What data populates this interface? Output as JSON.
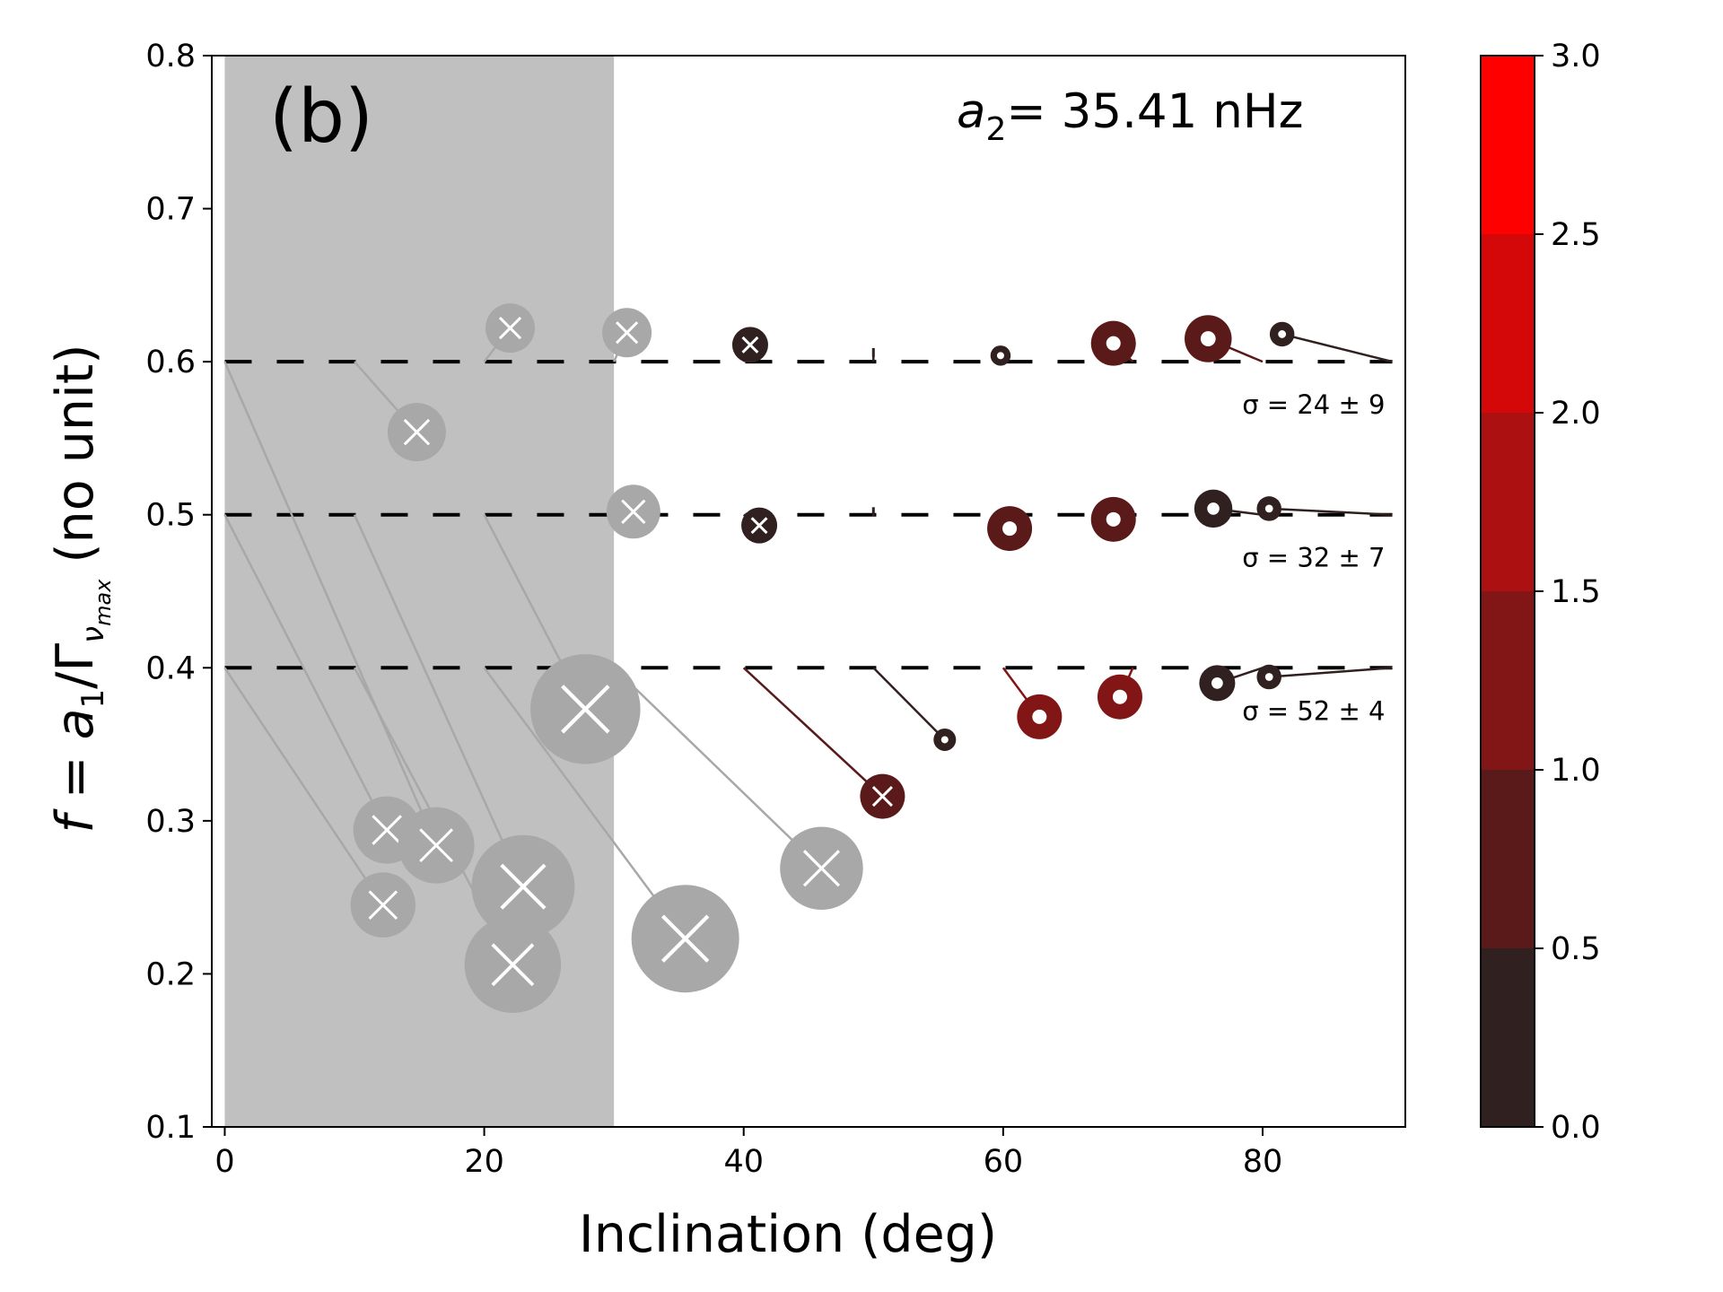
{
  "chart_data": {
    "type": "scatter",
    "panel_label": "(b)",
    "parameter_label": {
      "symbol": "a",
      "subscript": "2",
      "value_text": "= 35.41 nHz"
    },
    "xlabel": "Inclination (deg)",
    "ylabel": {
      "prefix": "f",
      "eq": " = a",
      "sub1": "1",
      "mid": "/Γ",
      "sub2": "ν",
      "sub3": "max",
      "suffix": "(no unit)"
    },
    "xlim": [
      -1,
      91
    ],
    "ylim": [
      0.1,
      0.8
    ],
    "x_ticks": [
      0,
      20,
      40,
      60,
      80
    ],
    "x_tick_labels": [
      "0",
      "20",
      "40",
      "60",
      "80"
    ],
    "y_ticks": [
      0.1,
      0.2,
      0.3,
      0.4,
      0.5,
      0.6,
      0.7,
      0.8
    ],
    "y_tick_labels": [
      "0.1",
      "0.2",
      "0.3",
      "0.4",
      "0.5",
      "0.6",
      "0.7",
      "0.8"
    ],
    "shaded_region": {
      "x": [
        0,
        30
      ],
      "color": "#c0c0c0"
    },
    "reference_levels": [
      {
        "y": 0.6,
        "sigma_label": "σ = 24 ± 9"
      },
      {
        "y": 0.5,
        "sigma_label": "σ = 32 ± 7"
      },
      {
        "y": 0.4,
        "sigma_label": "σ = 52 ± 4"
      }
    ],
    "colorbar": {
      "range": [
        0,
        3
      ],
      "ticks": [
        0.0,
        0.5,
        1.0,
        1.5,
        2.0,
        2.5,
        3.0
      ],
      "tick_labels": [
        "0.0",
        "0.5",
        "1.0",
        "1.5",
        "2.0",
        "2.5",
        "3.0"
      ],
      "bins": [
        {
          "from": 0.0,
          "to": 0.5,
          "color": "#302020"
        },
        {
          "from": 0.5,
          "to": 1.0,
          "color": "#5a1a1a"
        },
        {
          "from": 1.0,
          "to": 1.5,
          "color": "#821515"
        },
        {
          "from": 1.5,
          "to": 2.0,
          "color": "#ac1010"
        },
        {
          "from": 2.0,
          "to": 2.5,
          "color": "#d40808"
        },
        {
          "from": 2.5,
          "to": 3.0,
          "color": "#ff0000"
        }
      ]
    },
    "marker_colors": {
      "excluded": "#a8a8a8",
      "cross": "#ffffff"
    },
    "points": [
      {
        "x_true": 20,
        "y_true": 0.6,
        "x": 22.0,
        "y": 0.622,
        "size": 2.2,
        "color": "#a8a8a8",
        "cross": true,
        "hole": false
      },
      {
        "x_true": 30,
        "y_true": 0.6,
        "x": 31.0,
        "y": 0.619,
        "size": 2.2,
        "color": "#a8a8a8",
        "cross": true,
        "hole": false
      },
      {
        "x_true": 10,
        "y_true": 0.6,
        "x": 14.8,
        "y": 0.554,
        "size": 2.6,
        "color": "#a8a8a8",
        "cross": true,
        "hole": false
      },
      {
        "x_true": 40,
        "y_true": 0.6,
        "x": 40.5,
        "y": 0.611,
        "size": 1.6,
        "color": "#302020",
        "cross": true,
        "hole": false
      },
      {
        "x_true": 60,
        "y_true": 0.6,
        "x": 59.8,
        "y": 0.604,
        "size": 0.9,
        "color": "#302020",
        "cross": false,
        "hole": true
      },
      {
        "x_true": 70,
        "y_true": 0.6,
        "x": 68.5,
        "y": 0.612,
        "size": 2.0,
        "color": "#5a1a1a",
        "cross": false,
        "hole": true
      },
      {
        "x_true": 80,
        "y_true": 0.6,
        "x": 75.8,
        "y": 0.615,
        "size": 2.1,
        "color": "#5a1a1a",
        "cross": false,
        "hole": true
      },
      {
        "x_true": 90,
        "y_true": 0.6,
        "x": 81.5,
        "y": 0.618,
        "size": 1.1,
        "color": "#302020",
        "cross": false,
        "hole": true
      },
      {
        "x_true": 30,
        "y_true": 0.5,
        "x": 31.5,
        "y": 0.502,
        "size": 2.4,
        "color": "#a8a8a8",
        "cross": true,
        "hole": false
      },
      {
        "x_true": 40,
        "y_true": 0.5,
        "x": 41.2,
        "y": 0.493,
        "size": 1.6,
        "color": "#302020",
        "cross": true,
        "hole": false
      },
      {
        "x_true": 60,
        "y_true": 0.5,
        "x": 60.5,
        "y": 0.491,
        "size": 2.0,
        "color": "#5a1a1a",
        "cross": false,
        "hole": true
      },
      {
        "x_true": 70,
        "y_true": 0.5,
        "x": 68.5,
        "y": 0.497,
        "size": 2.0,
        "color": "#5a1a1a",
        "cross": false,
        "hole": true
      },
      {
        "x_true": 80,
        "y_true": 0.5,
        "x": 76.2,
        "y": 0.504,
        "size": 1.7,
        "color": "#302020",
        "cross": false,
        "hole": true
      },
      {
        "x_true": 90,
        "y_true": 0.5,
        "x": 80.5,
        "y": 0.504,
        "size": 1.1,
        "color": "#302020",
        "cross": false,
        "hole": true
      },
      {
        "x_true": 0,
        "y_true": 0.4,
        "x": 12.2,
        "y": 0.245,
        "size": 2.9,
        "color": "#a8a8a8",
        "cross": true,
        "hole": false
      },
      {
        "x_true": 0,
        "y_true": 0.5,
        "x": 12.5,
        "y": 0.294,
        "size": 3.0,
        "color": "#a8a8a8",
        "cross": true,
        "hole": false
      },
      {
        "x_true": 0,
        "y_true": 0.6,
        "x": 16.3,
        "y": 0.284,
        "size": 3.4,
        "color": "#a8a8a8",
        "cross": true,
        "hole": false
      },
      {
        "x_true": 10,
        "y_true": 0.4,
        "x": 22.2,
        "y": 0.206,
        "size": 4.3,
        "color": "#a8a8a8",
        "cross": true,
        "hole": false
      },
      {
        "x_true": 10,
        "y_true": 0.5,
        "x": 23.0,
        "y": 0.257,
        "size": 4.6,
        "color": "#a8a8a8",
        "cross": true,
        "hole": false
      },
      {
        "x_true": 20,
        "y_true": 0.4,
        "x": 35.5,
        "y": 0.223,
        "size": 4.8,
        "color": "#a8a8a8",
        "cross": true,
        "hole": false
      },
      {
        "x_true": 20,
        "y_true": 0.5,
        "x": 27.8,
        "y": 0.373,
        "size": 4.9,
        "color": "#a8a8a8",
        "cross": true,
        "hole": false
      },
      {
        "x_true": 30,
        "y_true": 0.4,
        "x": 46.0,
        "y": 0.269,
        "size": 3.7,
        "color": "#a8a8a8",
        "cross": true,
        "hole": false
      },
      {
        "x_true": 40,
        "y_true": 0.4,
        "x": 50.7,
        "y": 0.316,
        "size": 2.0,
        "color": "#5a1a1a",
        "cross": true,
        "hole": false
      },
      {
        "x_true": 50,
        "y_true": 0.4,
        "x": 55.5,
        "y": 0.353,
        "size": 1.0,
        "color": "#302020",
        "cross": false,
        "hole": true
      },
      {
        "x_true": 60,
        "y_true": 0.4,
        "x": 62.8,
        "y": 0.368,
        "size": 2.0,
        "color": "#821515",
        "cross": false,
        "hole": true
      },
      {
        "x_true": 70,
        "y_true": 0.4,
        "x": 69.0,
        "y": 0.381,
        "size": 2.0,
        "color": "#821515",
        "cross": false,
        "hole": true
      },
      {
        "x_true": 80,
        "y_true": 0.4,
        "x": 76.5,
        "y": 0.39,
        "size": 1.6,
        "color": "#302020",
        "cross": false,
        "hole": true
      },
      {
        "x_true": 90,
        "y_true": 0.4,
        "x": 80.5,
        "y": 0.394,
        "size": 1.1,
        "color": "#302020",
        "cross": false,
        "hole": true
      },
      {
        "x_true": 50,
        "y_true": 0.6,
        "x": 50.0,
        "y": 0.606,
        "size": 0.0,
        "color": "#302020",
        "cross": false,
        "hole": false
      },
      {
        "x_true": 50,
        "y_true": 0.5,
        "x": 50.0,
        "y": 0.502,
        "size": 0.0,
        "color": "#302020",
        "cross": false,
        "hole": false
      }
    ]
  }
}
